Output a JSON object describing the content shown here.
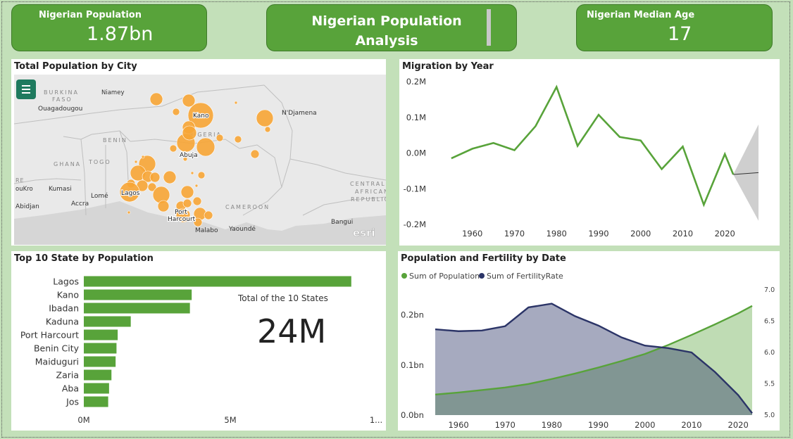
{
  "kpis": {
    "population": {
      "label": "Nigerian Population",
      "value": "1.87bn"
    },
    "title": "Nigerian Population\nAnalysis",
    "median_age": {
      "label": "Nigerian Median Age",
      "value": "17"
    }
  },
  "map_panel": {
    "title": "Total Population by City",
    "labels": [
      "BURKINA",
      "FASO",
      "Niamey",
      "Ouagadougou",
      "BENIN",
      "GHANA",
      "TOGO",
      "Kumasi",
      "Accra",
      "Lomé",
      "Abidjan",
      "ouKro",
      "RE",
      "NIGERIA",
      "Kano",
      "Abuja",
      "Lagos",
      "Port",
      "Harcourt",
      "N'Djamena",
      "CAMEROON",
      "CENTRAL",
      "AFRICAN",
      "REPUBLIC",
      "Bangui",
      "Malabo",
      "Yaoundé",
      "esri"
    ]
  },
  "migration_panel": {
    "title": "Migration by Year"
  },
  "states_panel": {
    "title": "Top 10 State by Population",
    "total_label": "Total of the 10 States",
    "total_value": "24M"
  },
  "fertility_panel": {
    "title": "Population and Fertility by Date"
  },
  "colors": {
    "green": "#58a33a",
    "navy": "#2b3467",
    "orange": "#f7a535",
    "page_bg": "#c3e0b9"
  },
  "chart_data": [
    {
      "type": "line",
      "title": "Migration by Year",
      "x": [
        1955,
        1960,
        1965,
        1970,
        1975,
        1980,
        1985,
        1990,
        1995,
        2000,
        2005,
        2010,
        2015,
        2020,
        2022
      ],
      "series": [
        {
          "values": [
            -0.015,
            0.012,
            0.028,
            0.008,
            0.075,
            0.185,
            0.02,
            0.107,
            0.045,
            0.035,
            -0.045,
            0.018,
            -0.145,
            -0.003,
            -0.06
          ]
        }
      ],
      "forecast": {
        "x": [
          2022,
          2028
        ],
        "center": [
          -0.06,
          -0.055
        ],
        "upper": [
          -0.06,
          0.08
        ],
        "lower": [
          -0.06,
          -0.19
        ]
      },
      "xticks": [
        "1960",
        "1970",
        "1980",
        "1990",
        "2000",
        "2010",
        "2020"
      ],
      "yticks": [
        "0.2M",
        "0.1M",
        "0.0M",
        "-0.1M",
        "-0.2M"
      ],
      "ylim": [
        -0.2,
        0.2
      ]
    },
    {
      "type": "bar",
      "title": "Top 10 State by Population",
      "categories": [
        "Lagos",
        "Kano",
        "Ibadan",
        "Kaduna",
        "Port Harcourt",
        "Benin City",
        "Maiduguri",
        "Zaria",
        "Aba",
        "Jos"
      ],
      "values": [
        9.0,
        3.63,
        3.57,
        1.58,
        1.14,
        1.1,
        1.07,
        0.93,
        0.85,
        0.82
      ],
      "xticks": [
        "0M",
        "5M",
        "1..."
      ],
      "xlim": [
        0,
        10
      ]
    },
    {
      "type": "area",
      "title": "Population and Fertility by Date",
      "legend": [
        "Sum of Population",
        "Sum of FertilityRate"
      ],
      "x": [
        1955,
        1960,
        1965,
        1970,
        1975,
        1980,
        1985,
        1990,
        1995,
        2000,
        2005,
        2010,
        2015,
        2020,
        2023
      ],
      "population_bn": [
        0.041,
        0.045,
        0.05,
        0.055,
        0.062,
        0.072,
        0.083,
        0.095,
        0.108,
        0.122,
        0.14,
        0.16,
        0.181,
        0.203,
        0.218
      ],
      "fertility_rate": [
        6.37,
        6.34,
        6.35,
        6.42,
        6.72,
        6.78,
        6.58,
        6.43,
        6.24,
        6.11,
        6.07,
        6.0,
        5.69,
        5.32,
        5.03
      ],
      "xticks": [
        "1960",
        "1970",
        "1980",
        "1990",
        "2000",
        "2010",
        "2020"
      ],
      "yticks_left": [
        "0.2bn",
        "0.1bn",
        "0.0bn"
      ],
      "yticks_right": [
        "7.0",
        "6.5",
        "6.0",
        "5.5",
        "5.0"
      ],
      "ylim_left": [
        0,
        0.25
      ],
      "ylim_right": [
        5.0,
        7.0
      ]
    }
  ]
}
